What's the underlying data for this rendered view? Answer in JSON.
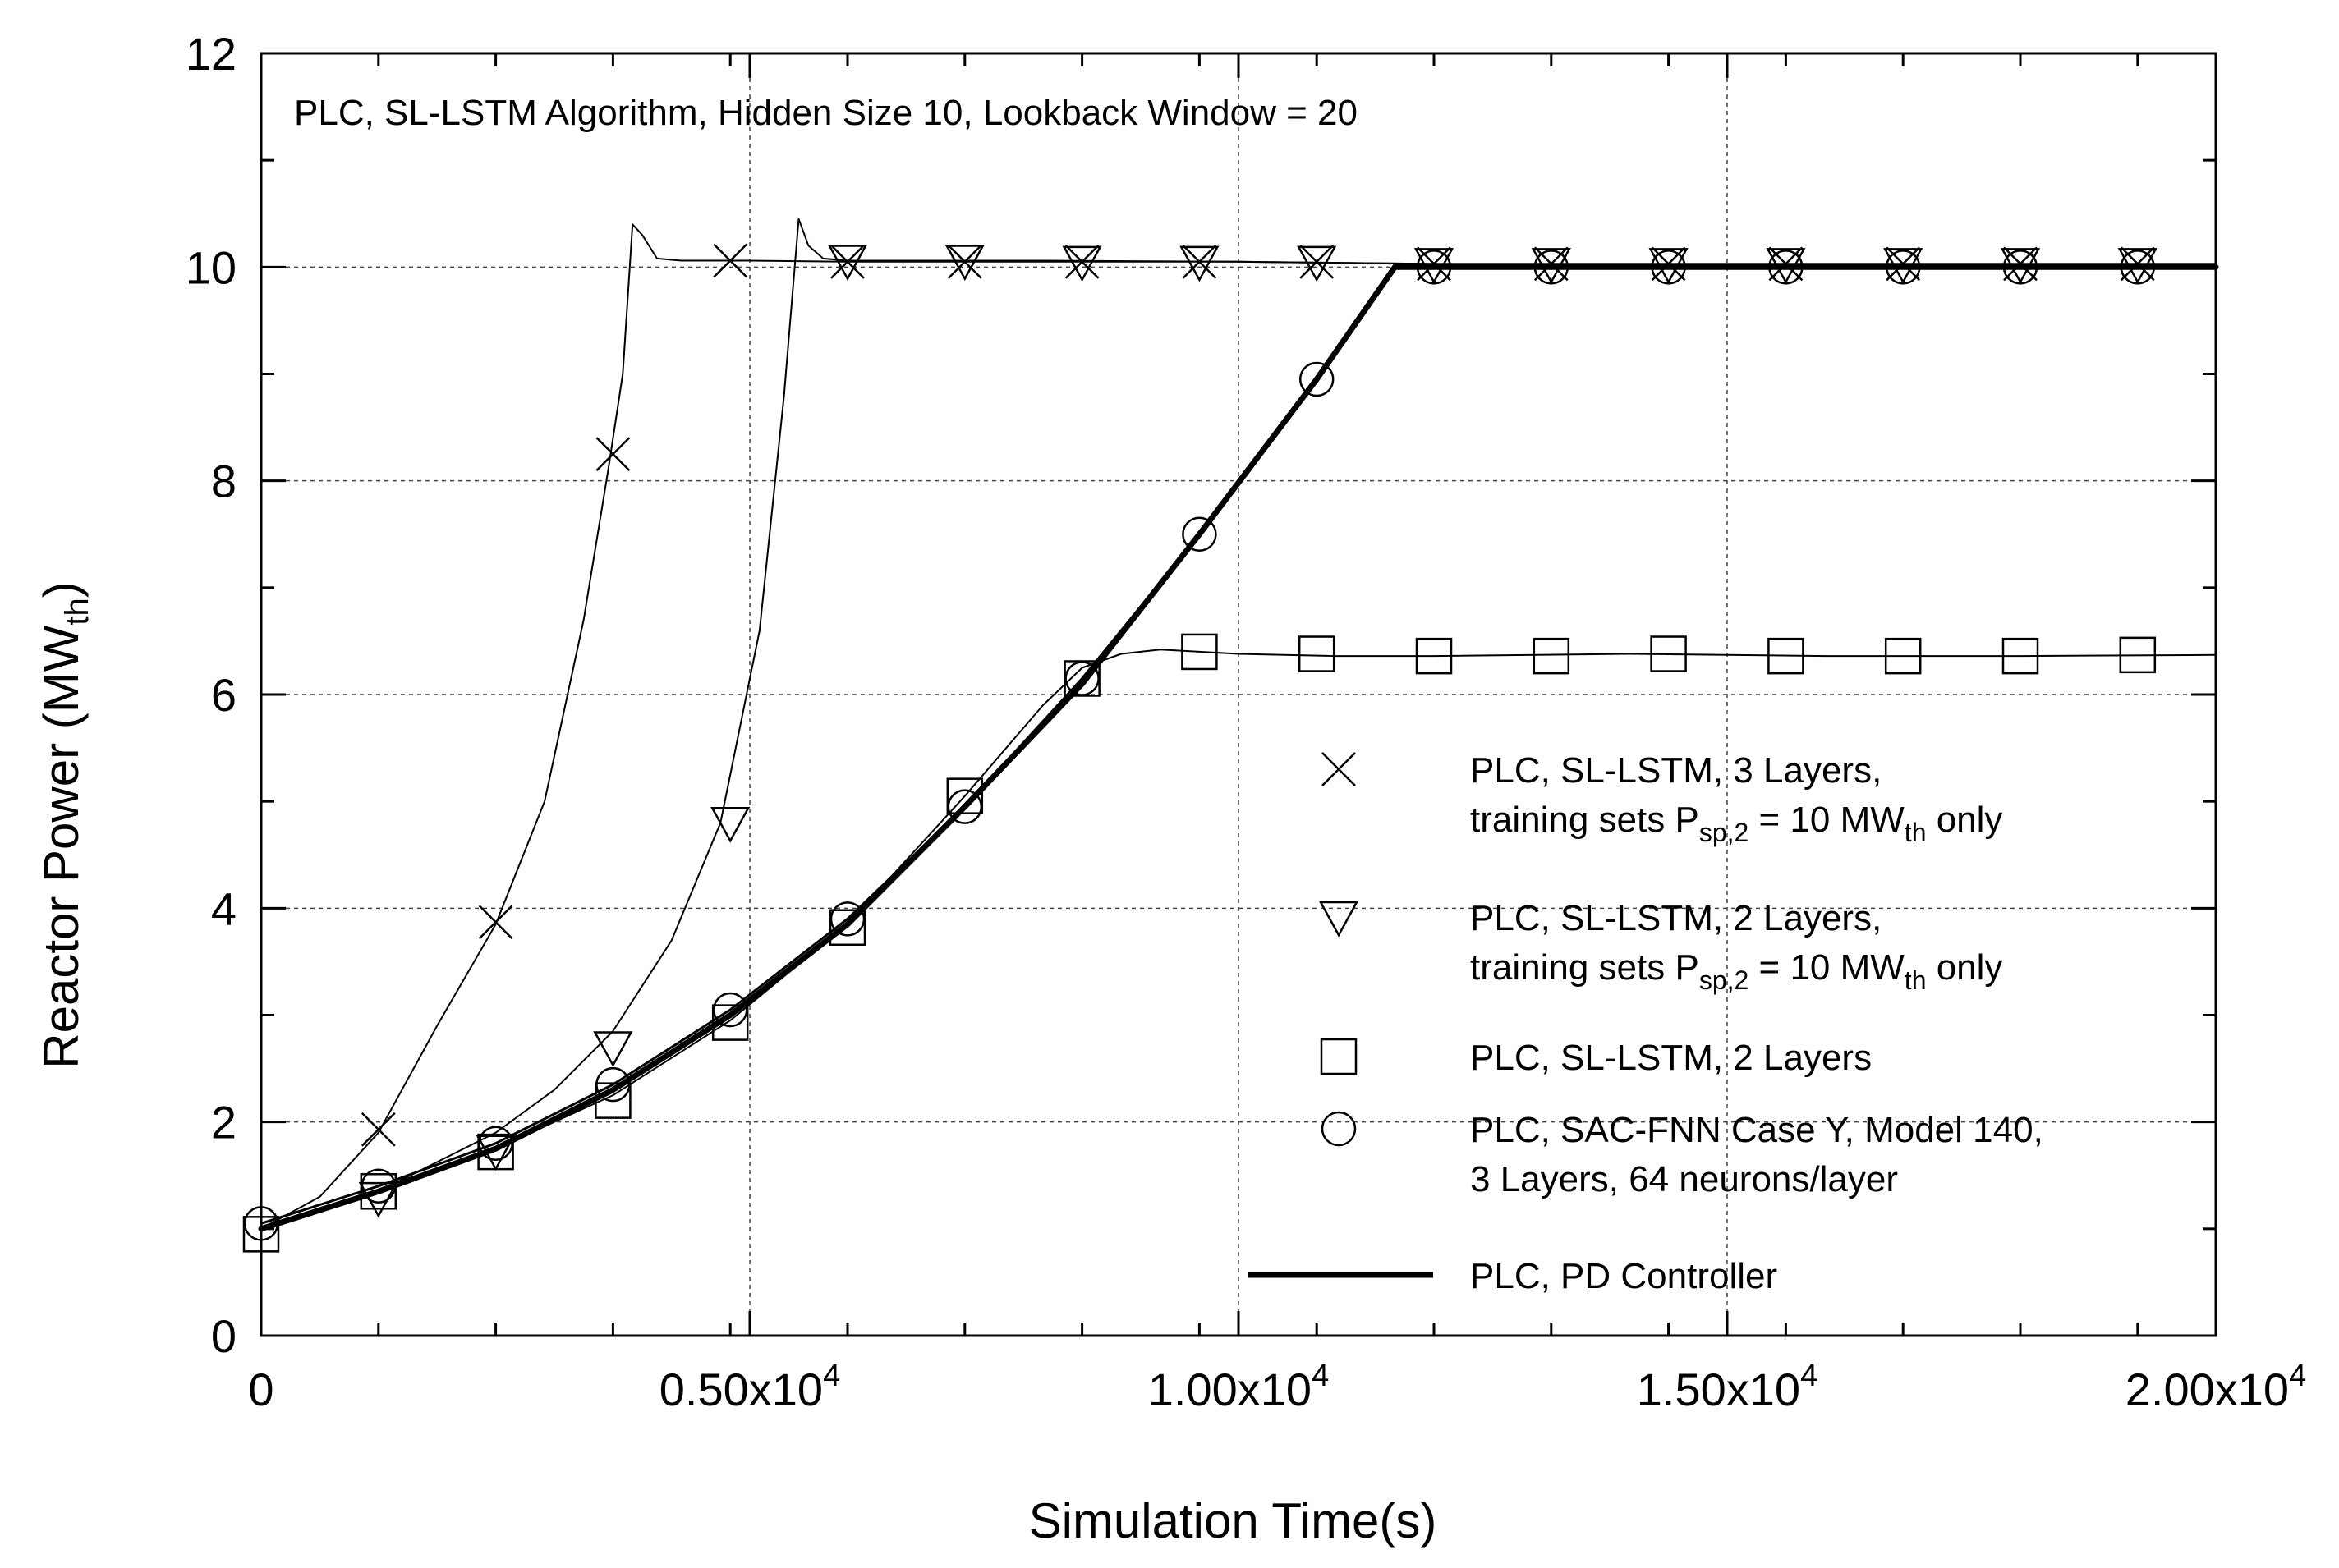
{
  "chart_data": {
    "type": "line",
    "title": "",
    "annotation": "PLC, SL-LSTM Algorithm, Hidden Size 10, Lookback Window = 20",
    "xlabel": "Simulation Time(s)",
    "ylabel": "Reactor Power (MW",
    "ylabel_sub": "th",
    "ylabel_end": ")",
    "xlim": [
      0,
      20000
    ],
    "ylim": [
      0,
      12
    ],
    "grid": true,
    "x_ticks": [
      {
        "value": 0,
        "label": "0",
        "exp": ""
      },
      {
        "value": 5000,
        "label": "0.50x10",
        "exp": "4"
      },
      {
        "value": 10000,
        "label": "1.00x10",
        "exp": "4"
      },
      {
        "value": 15000,
        "label": "1.50x10",
        "exp": "4"
      },
      {
        "value": 20000,
        "label": "2.00x10",
        "exp": "4"
      }
    ],
    "y_ticks": [
      {
        "value": 0,
        "label": "0"
      },
      {
        "value": 2,
        "label": "2"
      },
      {
        "value": 4,
        "label": "4"
      },
      {
        "value": 6,
        "label": "6"
      },
      {
        "value": 8,
        "label": "8"
      },
      {
        "value": 10,
        "label": "10"
      },
      {
        "value": 12,
        "label": "12"
      }
    ],
    "legend_position": "center-right",
    "series": [
      {
        "name": "PLC, SL-LSTM, 3 Layers, training sets P_sp,2 = 10 MW_th only",
        "legend_line1": "PLC, SL-LSTM, 3 Layers,",
        "legend_line2_a": "training sets P",
        "legend_line2_sub1": "sp,2",
        "legend_line2_b": " = 10 MW",
        "legend_line2_sub2": "th",
        "legend_line2_c": " only",
        "marker": "x",
        "line_width": 2,
        "x": [
          0,
          600,
          1200,
          1800,
          2400,
          2900,
          3300,
          3550,
          3700,
          3800,
          3900,
          4050,
          4300,
          5000,
          6000,
          8000,
          10000,
          12000,
          15000,
          20000
        ],
        "y": [
          1.0,
          1.3,
          1.9,
          2.9,
          3.85,
          5.0,
          6.7,
          8.1,
          9.0,
          10.4,
          10.3,
          10.08,
          10.06,
          10.06,
          10.05,
          10.05,
          10.05,
          10.03,
          10.03,
          10.03
        ],
        "marker_x": [
          1200,
          2400,
          3600,
          4800,
          6000,
          7200,
          8400,
          9600,
          10800,
          12000,
          13200,
          14400,
          15600,
          16800,
          18000,
          19200
        ],
        "marker_y": [
          1.93,
          3.87,
          8.25,
          10.06,
          10.05,
          10.05,
          10.05,
          10.05,
          10.05,
          10.03,
          10.03,
          10.03,
          10.03,
          10.03,
          10.03,
          10.03
        ]
      },
      {
        "name": "PLC, SL-LSTM, 2 Layers, training sets P_sp,2 = 10 MW_th only",
        "legend_line1": "PLC, SL-LSTM, 2 Layers,",
        "legend_line2_a": "training sets P",
        "legend_line2_sub1": "sp,2",
        "legend_line2_b": " = 10 MW",
        "legend_line2_sub2": "th",
        "legend_line2_c": " only",
        "marker": "triangle-down",
        "line_width": 2,
        "x": [
          0,
          1200,
          2400,
          3000,
          3600,
          4200,
          4700,
          5100,
          5350,
          5500,
          5600,
          5750,
          6000,
          8000,
          10000,
          12000,
          15000,
          20000
        ],
        "y": [
          1.0,
          1.35,
          1.9,
          2.3,
          2.85,
          3.7,
          4.8,
          6.6,
          8.8,
          10.45,
          10.2,
          10.08,
          10.06,
          10.06,
          10.05,
          10.03,
          10.03,
          10.03
        ],
        "marker_x": [
          1200,
          2400,
          3600,
          4800,
          6000,
          7200,
          8400,
          9600,
          10800,
          12000,
          13200,
          14400,
          15600,
          16800,
          18000,
          19200
        ],
        "marker_y": [
          1.29,
          1.73,
          2.7,
          4.8,
          10.06,
          10.06,
          10.05,
          10.05,
          10.05,
          10.03,
          10.03,
          10.03,
          10.03,
          10.03,
          10.03,
          10.03
        ]
      },
      {
        "name": "PLC, SL-LSTM, 2 Layers",
        "legend_line1": "PLC, SL-LSTM, 2 Layers",
        "marker": "square",
        "line_width": 2,
        "x": [
          0,
          1200,
          2400,
          3600,
          4800,
          6000,
          7200,
          8000,
          8400,
          8800,
          9200,
          9600,
          10000,
          11000,
          12000,
          14000,
          16000,
          18000,
          20000
        ],
        "y": [
          1.0,
          1.35,
          1.75,
          2.25,
          2.95,
          3.85,
          5.05,
          5.9,
          6.25,
          6.38,
          6.42,
          6.4,
          6.38,
          6.36,
          6.36,
          6.38,
          6.36,
          6.36,
          6.37
        ],
        "marker_x": [
          0,
          1200,
          2400,
          3600,
          4800,
          6000,
          7200,
          8400,
          9600,
          10800,
          12000,
          13200,
          14400,
          15600,
          16800,
          18000,
          19200
        ],
        "marker_y": [
          0.95,
          1.35,
          1.72,
          2.2,
          2.93,
          3.82,
          5.05,
          6.15,
          6.4,
          6.38,
          6.36,
          6.36,
          6.38,
          6.36,
          6.36,
          6.36,
          6.37
        ]
      },
      {
        "name": "PLC, SAC-FNN Case Y, Model 140, 3 Layers, 64 neurons/layer",
        "legend_line1": "PLC, SAC-FNN Case Y, Model 140,",
        "legend_line2_a": "3 Layers, 64 neurons/layer",
        "marker": "circle",
        "line_width": 3,
        "x": [
          0,
          1200,
          2400,
          3600,
          4800,
          6000,
          7200,
          8400,
          9600,
          10800,
          11600,
          12000,
          20000
        ],
        "y": [
          1.05,
          1.4,
          1.8,
          2.35,
          3.05,
          3.9,
          4.95,
          6.15,
          7.5,
          8.95,
          10.0,
          10.0,
          10.0
        ],
        "marker_x": [
          0,
          1200,
          2400,
          3600,
          4800,
          6000,
          7200,
          8400,
          9600,
          10800,
          12000,
          13200,
          14400,
          15600,
          16800,
          18000,
          19200
        ],
        "marker_y": [
          1.05,
          1.4,
          1.8,
          2.35,
          3.05,
          3.9,
          4.95,
          6.15,
          7.5,
          8.95,
          10.0,
          10.0,
          10.0,
          10.0,
          10.0,
          10.0,
          10.0
        ]
      },
      {
        "name": "PLC, PD Controller",
        "legend_line1": "PLC, PD Controller",
        "marker": "none",
        "line_width": 7,
        "x": [
          0,
          1200,
          2400,
          3600,
          4800,
          6000,
          7200,
          8400,
          9600,
          10800,
          11600,
          12000,
          20000
        ],
        "y": [
          1.0,
          1.35,
          1.75,
          2.3,
          3.0,
          3.85,
          4.95,
          6.1,
          7.5,
          8.95,
          10.0,
          10.0,
          10.0
        ],
        "marker_x": [],
        "marker_y": []
      }
    ]
  }
}
